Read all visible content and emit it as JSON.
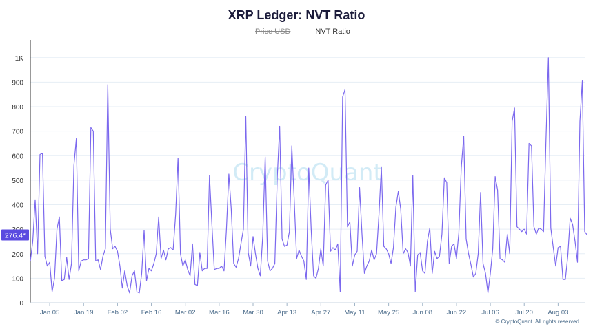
{
  "chart_data": {
    "type": "line",
    "title": "XRP Ledger: NVT Ratio",
    "legend": [
      {
        "name": "Price USD",
        "color": "#7fa8c9",
        "hidden": true
      },
      {
        "name": "NVT Ratio",
        "color": "#7b68ee",
        "hidden": false
      }
    ],
    "ylim": [
      0,
      1050
    ],
    "yticks": [
      0,
      100,
      200,
      300,
      400,
      500,
      600,
      700,
      800,
      900,
      1000
    ],
    "ytick_labels": [
      "0",
      "100",
      "200",
      "300",
      "400",
      "500",
      "600",
      "700",
      "800",
      "900",
      "1K"
    ],
    "xlim": [
      "2025-12-28",
      "2026-08-14"
    ],
    "xticks": [
      "2026-01-05",
      "2026-01-19",
      "2026-02-02",
      "2026-02-16",
      "2026-03-02",
      "2026-03-16",
      "2026-03-30",
      "2026-04-13",
      "2026-04-27",
      "2026-05-11",
      "2026-05-25",
      "2026-06-08",
      "2026-06-22",
      "2026-07-06",
      "2026-07-20",
      "2026-08-03"
    ],
    "xtick_labels": [
      "Jan 05",
      "Jan 19",
      "Feb 02",
      "Feb 16",
      "Mar 02",
      "Mar 16",
      "Mar 30",
      "Apr 13",
      "Apr 27",
      "May 11",
      "May 25",
      "Jun 08",
      "Jun 22",
      "Jul 06",
      "Jul 20",
      "Aug 03"
    ],
    "current_value_label": "276.4*",
    "watermark": "CryptoQuant",
    "credit": "© CryptoQuant. All rights reserved",
    "grid": true,
    "series": [
      {
        "name": "NVT Ratio",
        "x_start": "2025-12-28",
        "x_step_days": 1,
        "values": [
          170,
          250,
          420,
          200,
          605,
          610,
          190,
          150,
          165,
          45,
          100,
          300,
          350,
          90,
          95,
          185,
          95,
          160,
          560,
          670,
          130,
          170,
          175,
          175,
          180,
          715,
          700,
          170,
          175,
          135,
          190,
          220,
          890,
          300,
          220,
          230,
          210,
          150,
          60,
          130,
          70,
          40,
          110,
          130,
          45,
          40,
          120,
          295,
          90,
          140,
          130,
          160,
          200,
          350,
          180,
          215,
          175,
          220,
          225,
          215,
          360,
          590,
          200,
          150,
          175,
          135,
          110,
          240,
          75,
          70,
          205,
          130,
          140,
          140,
          520,
          320,
          135,
          140,
          140,
          150,
          130,
          300,
          525,
          380,
          160,
          145,
          180,
          240,
          300,
          760,
          205,
          150,
          270,
          200,
          140,
          110,
          270,
          595,
          170,
          130,
          140,
          160,
          510,
          720,
          260,
          230,
          235,
          290,
          640,
          420,
          180,
          215,
          190,
          170,
          95,
          550,
          300,
          110,
          100,
          140,
          220,
          150,
          480,
          500,
          210,
          225,
          215,
          240,
          45,
          840,
          870,
          310,
          330,
          150,
          195,
          210,
          470,
          280,
          120,
          150,
          170,
          215,
          175,
          200,
          360,
          555,
          230,
          220,
          200,
          160,
          225,
          390,
          455,
          380,
          200,
          220,
          205,
          150,
          520,
          45,
          195,
          205,
          130,
          120,
          250,
          305,
          120,
          210,
          180,
          190,
          280,
          510,
          490,
          160,
          230,
          240,
          180,
          285,
          550,
          680,
          260,
          200,
          155,
          105,
          120,
          200,
          450,
          160,
          120,
          40,
          120,
          220,
          515,
          460,
          180,
          175,
          165,
          280,
          200,
          740,
          795,
          310,
          300,
          290,
          300,
          280,
          650,
          640,
          310,
          280,
          305,
          300,
          290,
          665,
          1000,
          305,
          225,
          150,
          225,
          230,
          95,
          95,
          190,
          345,
          320,
          250,
          165,
          740,
          905,
          290,
          276.4
        ]
      }
    ]
  }
}
